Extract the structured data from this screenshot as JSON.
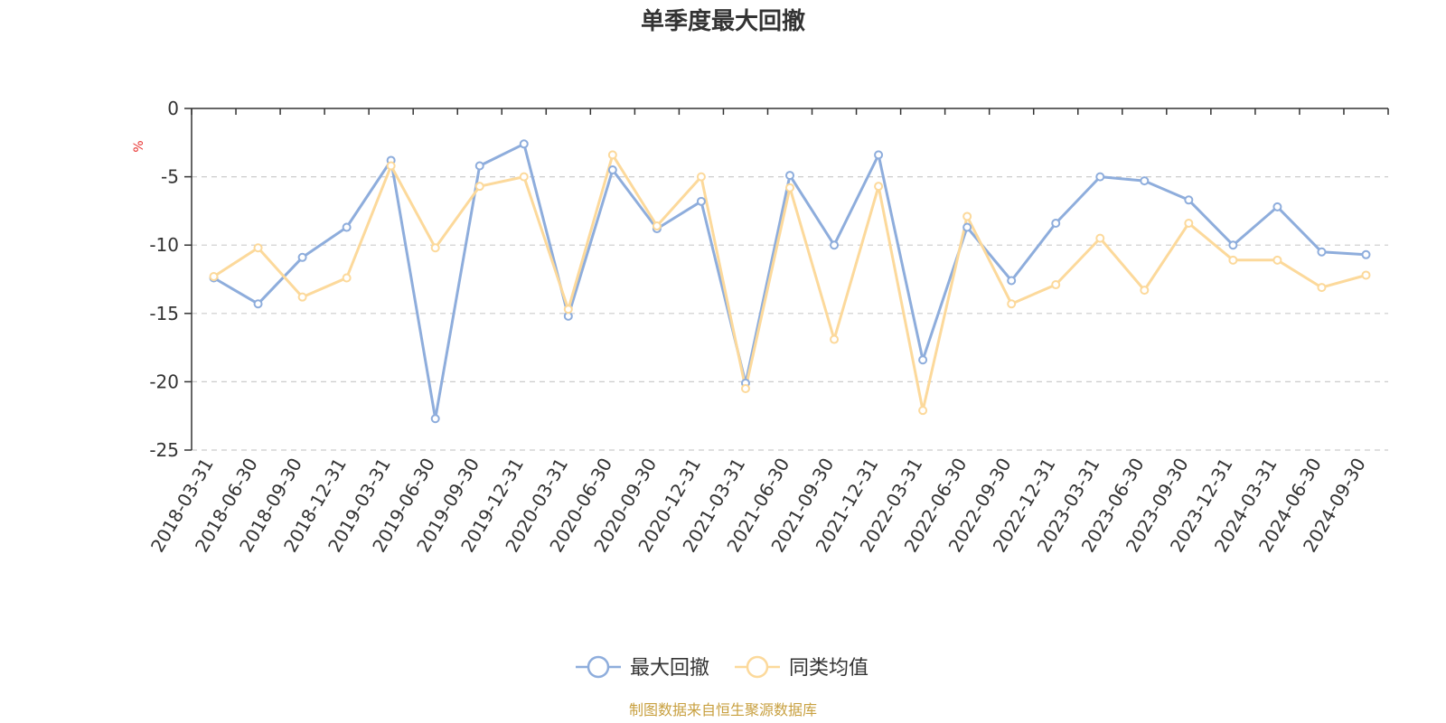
{
  "colors": {
    "series_max_drawdown": "#8eaddc",
    "series_peer_average": "#fcd99b",
    "unit_color": "#e8312f",
    "source_color": "#c8a040",
    "axis_color": "#333333",
    "grid_color": "#cccccc"
  },
  "chart_data": {
    "type": "line",
    "title": "单季度最大回撤",
    "ylabel": "%",
    "xlabel": "",
    "ylim": [
      -25,
      0
    ],
    "yticks": [
      0,
      -5,
      -10,
      -15,
      -20,
      -25
    ],
    "ytick_labels": [
      "0",
      "-5",
      "-10",
      "-15",
      "-20",
      "-25"
    ],
    "grid": "horizontal dashed",
    "legend_position": "bottom-center",
    "categories": [
      "2018-03-31",
      "2018-06-30",
      "2018-09-30",
      "2018-12-31",
      "2019-03-31",
      "2019-06-30",
      "2019-09-30",
      "2019-12-31",
      "2020-03-31",
      "2020-06-30",
      "2020-09-30",
      "2020-12-31",
      "2021-03-31",
      "2021-06-30",
      "2021-09-30",
      "2021-12-31",
      "2022-03-31",
      "2022-06-30",
      "2022-09-30",
      "2022-12-31",
      "2023-03-31",
      "2023-06-30",
      "2023-09-30",
      "2023-12-31",
      "2024-03-31",
      "2024-06-30",
      "2024-09-30"
    ],
    "series": [
      {
        "name": "最大回撤",
        "color": "#8eaddc",
        "values": [
          -12.4,
          -14.3,
          -10.9,
          -8.7,
          -3.8,
          -22.7,
          -4.2,
          -2.6,
          -15.2,
          -4.5,
          -8.8,
          -6.8,
          -20.1,
          -4.9,
          -10.0,
          -3.4,
          -18.4,
          -8.7,
          -12.6,
          -8.4,
          -5.0,
          -5.3,
          -6.7,
          -10.0,
          -7.2,
          -10.5,
          -10.7
        ]
      },
      {
        "name": "同类均值",
        "color": "#fcd99b",
        "values": [
          -12.3,
          -10.2,
          -13.8,
          -12.4,
          -4.2,
          -10.2,
          -5.7,
          -5.0,
          -14.7,
          -3.4,
          -8.6,
          -5.0,
          -20.5,
          -5.8,
          -16.9,
          -5.7,
          -22.1,
          -7.9,
          -14.3,
          -12.9,
          -9.5,
          -13.3,
          -8.4,
          -11.1,
          -11.1,
          -13.1,
          -12.2
        ]
      }
    ],
    "source": "制图数据来自恒生聚源数据库"
  }
}
